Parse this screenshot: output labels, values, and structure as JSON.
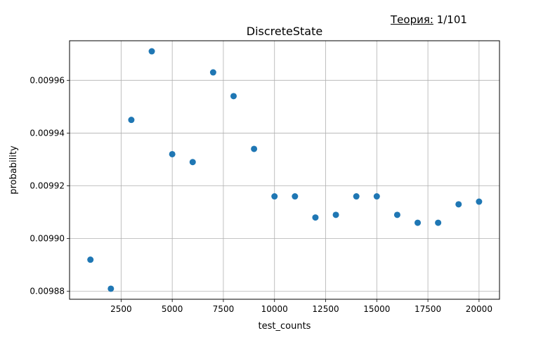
{
  "annotation": {
    "label": "Теория:",
    "value": "1/101"
  },
  "chart_data": {
    "type": "scatter",
    "title": "DiscreteState",
    "xlabel": "test_counts",
    "ylabel": "probability",
    "xlim": [
      -20,
      21000
    ],
    "ylim": [
      0.009877,
      0.009975
    ],
    "grid": true,
    "marker_color": "#1f77b4",
    "x_ticks": [
      2500,
      5000,
      7500,
      10000,
      12500,
      15000,
      17500,
      20000
    ],
    "x_tick_labels": [
      "2500",
      "5000",
      "7500",
      "10000",
      "12500",
      "15000",
      "17500",
      "20000"
    ],
    "y_ticks": [
      0.00988,
      0.0099,
      0.00992,
      0.00994,
      0.00996
    ],
    "y_tick_labels": [
      "0.00988",
      "0.00990",
      "0.00992",
      "0.00994",
      "0.00996"
    ],
    "x": [
      1000,
      2000,
      3000,
      4000,
      5000,
      6000,
      7000,
      8000,
      9000,
      10000,
      11000,
      12000,
      13000,
      14000,
      15000,
      16000,
      17000,
      18000,
      19000,
      20000
    ],
    "y": [
      0.009892,
      0.009881,
      0.009945,
      0.009971,
      0.009932,
      0.009929,
      0.009963,
      0.009954,
      0.009934,
      0.009916,
      0.009916,
      0.009908,
      0.009909,
      0.009916,
      0.009916,
      0.009909,
      0.009906,
      0.009906,
      0.009913,
      0.009914
    ]
  }
}
